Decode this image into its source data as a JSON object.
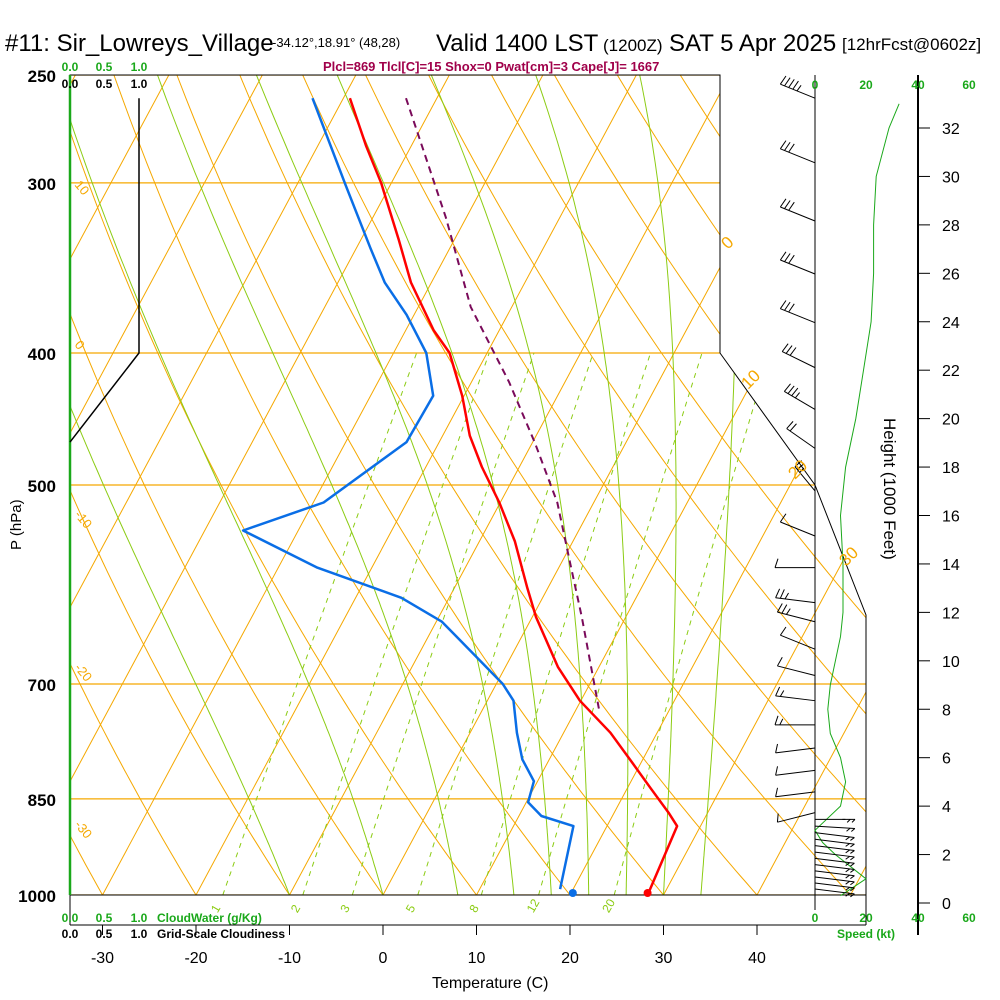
{
  "header": {
    "station": "#11: Sir_Lowreys_Village",
    "coords": "-34.12°,18.91° (48,28)",
    "valid": "Valid 1400 LST",
    "utc": "(1200Z)",
    "date": "SAT 5 Apr 2025",
    "forecast": "[12hrFcst@0602z]",
    "indices": "Plcl=869 Tlcl[C]=15 Shox=0 Pwat[cm]=3 Cape[J]= 1667"
  },
  "colors": {
    "temperature": "#ff0000",
    "dewpoint": "#0a6ee6",
    "parcel": "#7a0a5a",
    "isotherm": "#f5a800",
    "dry_adiabat": "#f5a800",
    "moist_adiabat": "#8ccc14",
    "mixing_ratio": "#8ccc14",
    "cloud_water": "#1aa81a",
    "indices_text": "#a0004a",
    "speed_axis": "#1aa81a"
  },
  "chart_data": {
    "type": "skew-t",
    "title": "#11: Sir_Lowreys_Village Valid 1400 LST (1200Z) SAT 5 Apr 2025",
    "xlabel": "Temperature (C)",
    "ylabel": "P (hPa)",
    "y2label": "Height (1000 Feet)",
    "xlim": [
      -35,
      50
    ],
    "ylim": [
      1000,
      250
    ],
    "x_ticks": [
      -30,
      -20,
      -10,
      0,
      10,
      20,
      30,
      40
    ],
    "y_ticks": [
      250,
      300,
      400,
      500,
      700,
      850,
      1000
    ],
    "height_ticks": [
      0,
      2,
      4,
      6,
      8,
      10,
      12,
      14,
      16,
      18,
      20,
      22,
      24,
      26,
      28,
      30,
      32
    ],
    "isotherm_labels": [
      {
        "t": "10",
        "temp": -10
      },
      {
        "t": "0",
        "temp": 0
      },
      {
        "t": "-10",
        "temp": 10
      },
      {
        "t": "-20",
        "temp": 20
      },
      {
        "t": "-30",
        "temp": 30
      }
    ],
    "isotherm_side_labels": [
      "10",
      "0",
      "-10",
      "-20",
      "-30"
    ],
    "isotherm_right_labels": [
      "0",
      "10",
      "20",
      "30"
    ],
    "mixing_ratio_labels": [
      "1",
      "2",
      "3",
      "5",
      "8",
      "12",
      "20"
    ],
    "mixing_ratios": [
      1,
      2,
      3,
      5,
      8,
      12,
      20
    ],
    "temperature": {
      "name": "Temperature",
      "p": [
        260,
        282,
        300,
        330,
        355,
        385,
        400,
        430,
        460,
        485,
        515,
        550,
        595,
        625,
        680,
        720,
        760,
        800,
        835,
        870,
        890,
        1000
      ],
      "t": [
        -49.3,
        -44.8,
        -41.1,
        -36.0,
        -32.2,
        -27.0,
        -24.0,
        -20.2,
        -17.1,
        -14.0,
        -10.1,
        -6.2,
        -2.2,
        0.4,
        5.6,
        9.9,
        15.0,
        19.1,
        22.5,
        25.8,
        27.5,
        28.3
      ]
    },
    "dewpoint": {
      "name": "Dewpoint",
      "p": [
        260,
        301,
        335,
        355,
        375,
        400,
        430,
        465,
        515,
        540,
        575,
        605,
        630,
        665,
        700,
        720,
        760,
        795,
        825,
        855,
        875,
        890,
        990
      ],
      "t": [
        -53.3,
        -44.8,
        -38.5,
        -35.0,
        -30.8,
        -26.5,
        -23.3,
        -23.5,
        -28.9,
        -35.9,
        -25.8,
        -15.1,
        -9.4,
        -4.2,
        0.7,
        2.8,
        5.0,
        7.1,
        9.6,
        10.2,
        12.4,
        16.4,
        18.6
      ]
    },
    "surface": {
      "temperature": 28.3,
      "dewpoint": 20.3,
      "p": 1000
    },
    "parcel": {
      "name": "Parcel",
      "p": [
        260,
        318,
        370,
        420,
        465,
        515,
        570,
        625,
        730
      ],
      "t": [
        -43.3,
        -32.2,
        -24.4,
        -16.0,
        -9.8,
        -3.9,
        0.9,
        5.3,
        12.4
      ]
    },
    "grid_scale_cloudiness": {
      "p": [
        260,
        400,
        465
      ],
      "value": [
        1.0,
        1.0,
        0.0
      ]
    },
    "cloud_water_axis": {
      "label": "CloudWater (g/Kg)",
      "ticks": [
        "0.0",
        "0.5",
        "1.0"
      ]
    },
    "cloudiness_axis": {
      "label": "Grid-Scale Cloudiness",
      "ticks": [
        "0.0",
        "0.5",
        "1.0"
      ]
    },
    "speed_axis": {
      "label": "Speed (kt)",
      "ticks": [
        "0",
        "20",
        "40",
        "60"
      ]
    },
    "wind_speed": {
      "height_kft": [
        0.3,
        1,
        1.5,
        2,
        2.5,
        3,
        4,
        5,
        6,
        7,
        8,
        9,
        10,
        11,
        12,
        13,
        14,
        16,
        18,
        20,
        22,
        24,
        26,
        28,
        30,
        32,
        33
      ],
      "speed_kt": [
        10,
        20,
        14,
        8,
        3,
        0,
        10,
        12,
        10,
        6,
        5,
        6,
        8,
        10,
        11,
        11,
        11,
        10,
        12,
        16,
        19,
        22,
        23,
        23,
        24,
        29,
        33
      ]
    },
    "wind_barbs": {
      "p": [
        260,
        290,
        320,
        350,
        380,
        410,
        440,
        470,
        505,
        545,
        575,
        610,
        630,
        660,
        690,
        720,
        750,
        780,
        810,
        840,
        870,
        880,
        890,
        900,
        910,
        920,
        930,
        940,
        950,
        960,
        970,
        980,
        990
      ],
      "speed_kt": [
        35,
        30,
        30,
        30,
        30,
        30,
        25,
        20,
        15,
        10,
        10,
        15,
        15,
        10,
        10,
        5,
        5,
        10,
        10,
        10,
        10,
        15,
        20,
        20,
        20,
        20,
        20,
        20,
        20,
        20,
        20,
        20,
        20
      ],
      "dir_deg": [
        300,
        300,
        300,
        300,
        300,
        305,
        310,
        315,
        330,
        300,
        270,
        280,
        290,
        300,
        290,
        280,
        270,
        260,
        260,
        260,
        250,
        90,
        95,
        100,
        100,
        100,
        100,
        100,
        100,
        100,
        100,
        100,
        100
      ]
    }
  }
}
